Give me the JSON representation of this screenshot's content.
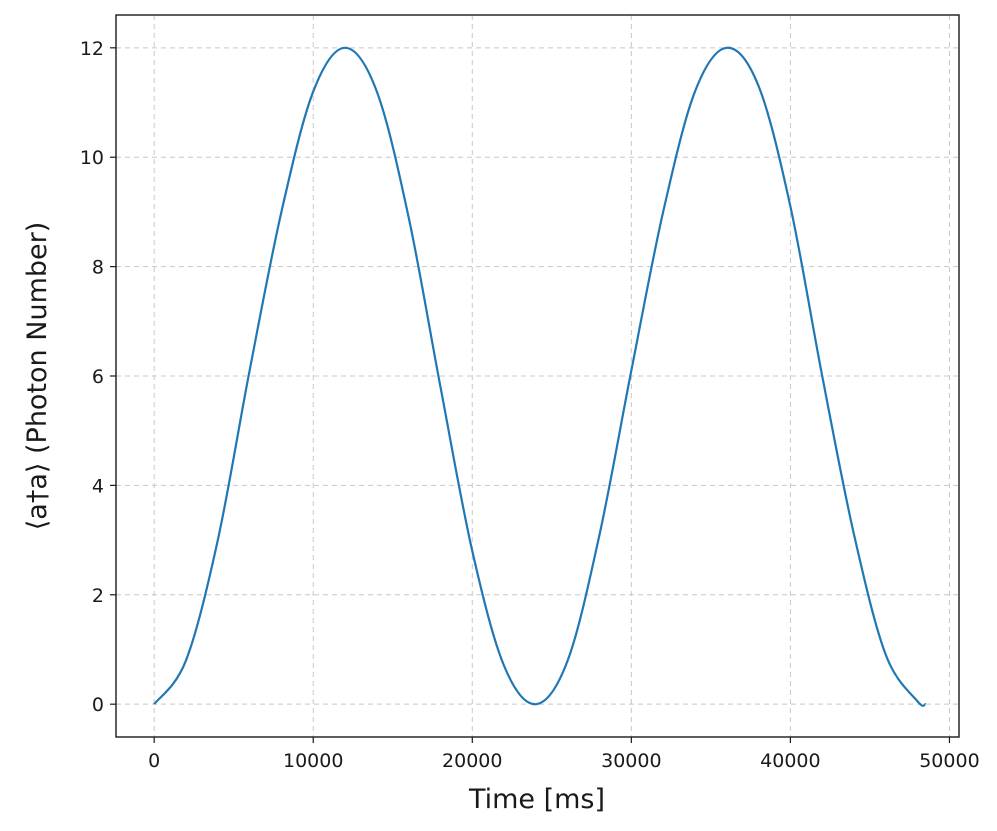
{
  "chart_data": {
    "type": "line",
    "title": "",
    "xlabel": "Time [ms]",
    "ylabel": "⟨a†a⟩ (Photon Number)",
    "xlim": [
      -2400,
      50600
    ],
    "ylim": [
      -0.6,
      12.6
    ],
    "xticks": [
      0,
      10000,
      20000,
      30000,
      40000,
      50000
    ],
    "xtick_labels": [
      "0",
      "10000",
      "20000",
      "30000",
      "40000",
      "50000"
    ],
    "yticks": [
      0,
      2,
      4,
      6,
      8,
      10,
      12
    ],
    "ytick_labels": [
      "0",
      "2",
      "4",
      "6",
      "8",
      "10",
      "12"
    ],
    "grid": true,
    "series": [
      {
        "color": "#1f77b4",
        "x": [
          0,
          2000,
          4000,
          6000,
          8000,
          10000,
          12000,
          14000,
          16000,
          18000,
          20000,
          22000,
          24000,
          26000,
          28000,
          30000,
          32000,
          34000,
          36000,
          38000,
          40000,
          42000,
          44000,
          46000,
          48000,
          48500
        ],
        "y": [
          0,
          0.8,
          3.0,
          6.1,
          9.0,
          11.2,
          12.0,
          11.2,
          8.9,
          5.8,
          2.8,
          0.7,
          0.0,
          0.8,
          3.1,
          6.1,
          9.0,
          11.2,
          12.0,
          11.3,
          9.1,
          6.0,
          3.1,
          0.9,
          0.05,
          0.0
        ]
      }
    ]
  }
}
